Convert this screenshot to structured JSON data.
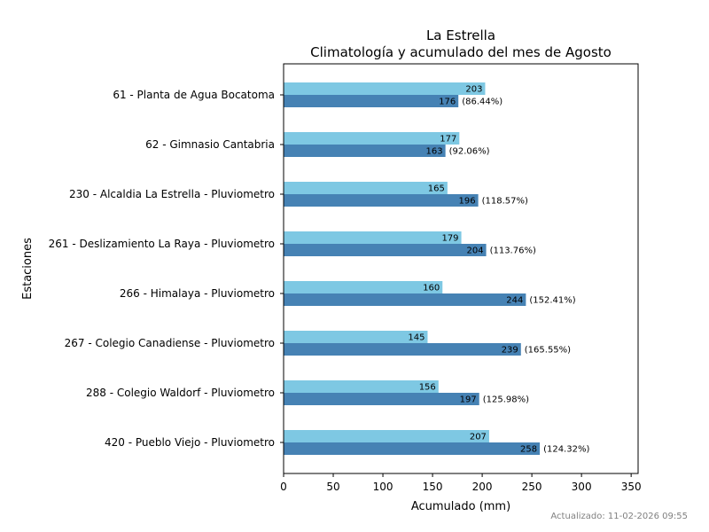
{
  "chart_data": {
    "type": "bar",
    "orientation": "horizontal",
    "title": "La Estrella",
    "subtitle": "Climatología y acumulado del mes de Agosto",
    "xlabel": "Acumulado (mm)",
    "ylabel": "Estaciones",
    "xlim": [
      0,
      357
    ],
    "xticks": [
      0,
      50,
      100,
      150,
      200,
      250,
      300,
      350
    ],
    "grid": false,
    "categories": [
      "61 - Planta de Agua Bocatoma",
      "62 - Gimnasio Cantabria",
      "230 - Alcaldia La Estrella - Pluviometro",
      "261 - Deslizamiento La Raya - Pluviometro",
      "266 - Himalaya - Pluviometro",
      "267 - Colegio Canadiense - Pluviometro",
      "288 - Colegio Waldorf - Pluviometro",
      "420 - Pueblo Viejo - Pluviometro"
    ],
    "series": [
      {
        "color": "#7ec8e3",
        "values": [
          203,
          177,
          165,
          179,
          160,
          145,
          156,
          207
        ]
      },
      {
        "color": "#4682b4",
        "values": [
          176,
          163,
          196,
          204,
          244,
          239,
          197,
          258
        ],
        "percent_labels": [
          "(86.44%)",
          "(92.06%)",
          "(118.57%)",
          "(113.76%)",
          "(152.41%)",
          "(165.55%)",
          "(125.98%)",
          "(124.32%)"
        ]
      }
    ]
  },
  "footer": {
    "updated": "Actualizado: 11-02-2026 09:55"
  }
}
